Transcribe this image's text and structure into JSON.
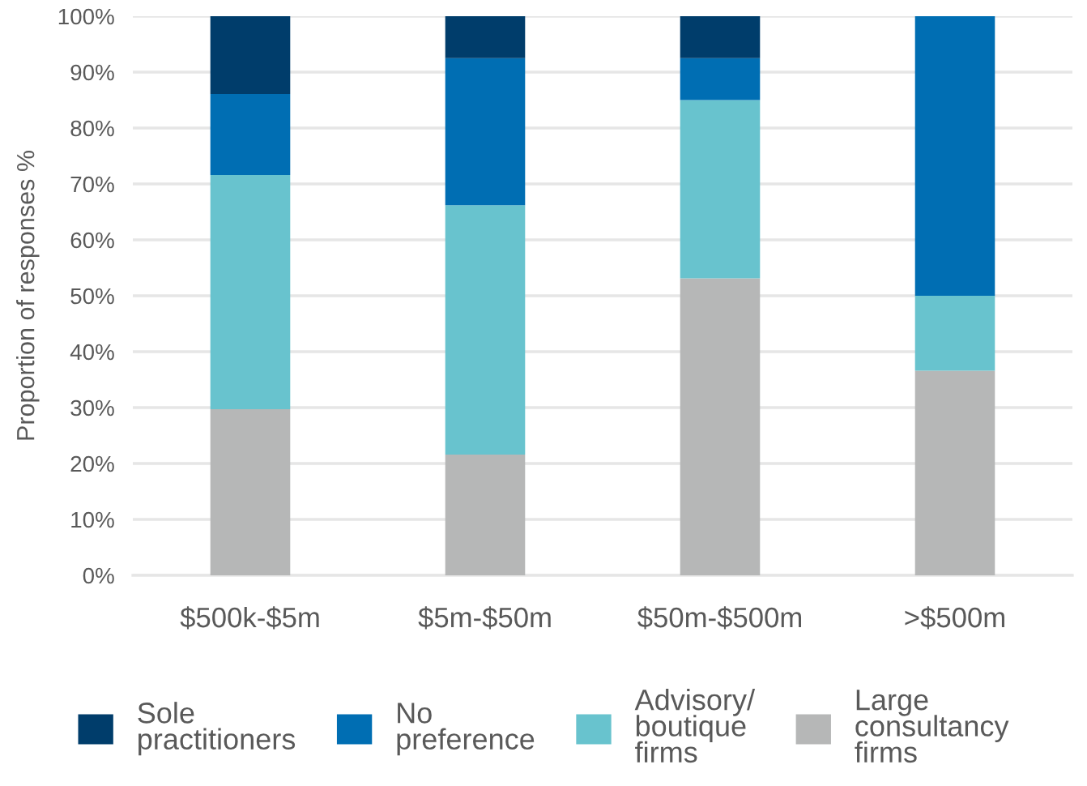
{
  "chart_data": {
    "type": "bar",
    "stacked": true,
    "ylabel": "Proportion of responses %",
    "categories": [
      "$500k-$5m",
      "$5m-$50m",
      "$50m-$500m",
      ">$500m"
    ],
    "series": [
      {
        "name": "Large consultancy firms",
        "color": "#b6b7b7",
        "values": [
          29.7,
          21.6,
          53.1,
          36.6
        ]
      },
      {
        "name": "Advisory/ boutique firms",
        "color": "#68c3ce",
        "values": [
          41.9,
          44.6,
          31.9,
          13.4
        ]
      },
      {
        "name": "No preference",
        "color": "#006eb3",
        "values": [
          14.5,
          26.3,
          7.5,
          50.0
        ]
      },
      {
        "name": "Sole practitioners",
        "color": "#003d6b",
        "values": [
          13.9,
          7.5,
          7.5,
          0
        ]
      }
    ],
    "ylim": [
      0,
      100
    ],
    "yticks": [
      {
        "value": 0,
        "label": "0%"
      },
      {
        "value": 10,
        "label": "10%"
      },
      {
        "value": 20,
        "label": "20%"
      },
      {
        "value": 30,
        "label": "30%"
      },
      {
        "value": 40,
        "label": "40%"
      },
      {
        "value": 50,
        "label": "50%"
      },
      {
        "value": 60,
        "label": "60%"
      },
      {
        "value": 70,
        "label": "70%"
      },
      {
        "value": 80,
        "label": "80%"
      },
      {
        "value": 90,
        "label": "90%"
      },
      {
        "value": 100,
        "label": "100%"
      }
    ],
    "grid": "y",
    "legend": "bottom"
  }
}
